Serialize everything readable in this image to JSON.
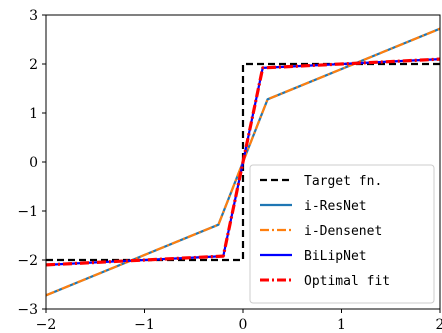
{
  "chart_data": {
    "type": "line",
    "title": "",
    "xlabel": "",
    "ylabel": "",
    "xlim": [
      -2,
      2
    ],
    "ylim": [
      -3,
      3
    ],
    "x_ticks": [
      -2,
      -1,
      0,
      1,
      2
    ],
    "x_tick_labels": [
      "−2",
      "−1",
      "0",
      "1",
      "2"
    ],
    "y_ticks": [
      -3,
      -2,
      -1,
      0,
      1,
      2,
      3
    ],
    "y_tick_labels": [
      "−3",
      "−2",
      "−1",
      "0",
      "1",
      "2",
      "3"
    ],
    "grid": false,
    "legend_position": "lower-right",
    "series": [
      {
        "name": "Target fn.",
        "color": "#000000",
        "style": "dashed",
        "x": [
          -2,
          0,
          0,
          2
        ],
        "y": [
          -2,
          -2,
          2,
          2
        ]
      },
      {
        "name": "i-ResNet",
        "color": "#1f77b4",
        "style": "solid",
        "x": [
          -2,
          -0.25,
          0.25,
          2
        ],
        "y": [
          -2.72,
          -1.28,
          1.28,
          2.72
        ]
      },
      {
        "name": "i-Densenet",
        "color": "#ff7f0e",
        "style": "dashdot",
        "x": [
          -2,
          -0.25,
          0.25,
          2
        ],
        "y": [
          -2.72,
          -1.28,
          1.28,
          2.72
        ]
      },
      {
        "name": "BiLipNet",
        "color": "#0000ff",
        "style": "solid",
        "x": [
          -2,
          -0.2,
          0.2,
          2
        ],
        "y": [
          -2.1,
          -1.92,
          1.92,
          2.1
        ]
      },
      {
        "name": "Optimal fit",
        "color": "#ff0000",
        "style": "dashdot",
        "x": [
          -2,
          -0.2,
          0.2,
          2
        ],
        "y": [
          -2.1,
          -1.92,
          1.92,
          2.1
        ]
      }
    ]
  }
}
